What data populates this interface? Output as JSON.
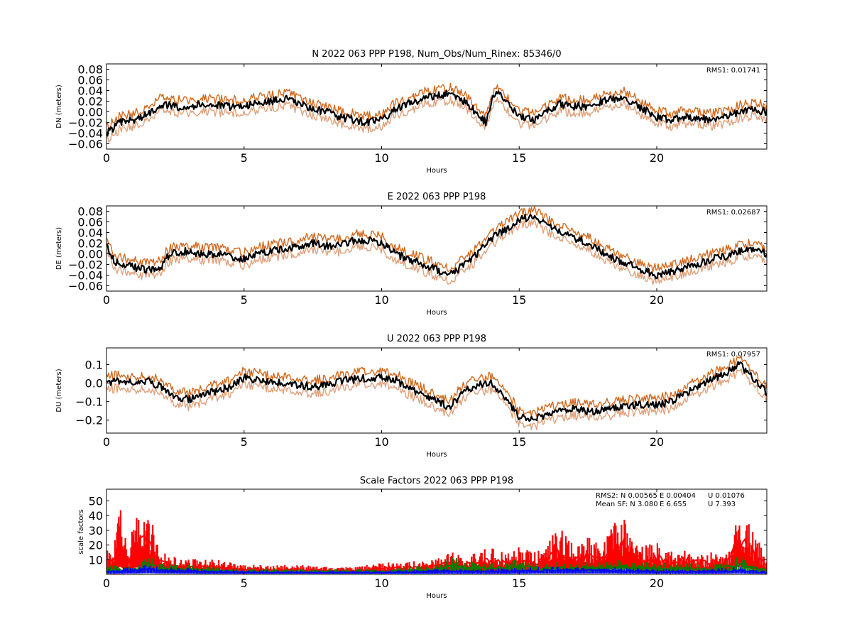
{
  "chart_data": [
    {
      "type": "line",
      "title": "N 2022 063 PPP  P198, Num_Obs/Num_Rinex: 85346/0",
      "xlabel": "Hours",
      "ylabel": "DN (meters)",
      "xlim": [
        0,
        24
      ],
      "ylim": [
        -0.07,
        0.09
      ],
      "xticks": [
        "0",
        "5",
        "10",
        "15",
        "20"
      ],
      "yticks": [
        "0.08",
        "0.06",
        "0.04",
        "0.02",
        "0.00",
        "−0.02",
        "−0.04",
        "−0.06"
      ],
      "annotation": "RMS1:  0.01741",
      "series": [
        {
          "role": "upper",
          "color": "#d2691e"
        },
        {
          "role": "lower",
          "color": "#e0a07a"
        },
        {
          "role": "center",
          "color": "#000000",
          "x": [
            0,
            0.5,
            1,
            1.5,
            2,
            2.5,
            3,
            3.5,
            4,
            4.5,
            5,
            5.5,
            6,
            6.5,
            7,
            7.5,
            8,
            8.5,
            9,
            9.5,
            10,
            10.5,
            11,
            11.5,
            12,
            12.5,
            13,
            13.5,
            13.8,
            14,
            14.2,
            14.5,
            15,
            15.5,
            16,
            16.5,
            17,
            17.5,
            18,
            18.5,
            18.8,
            19,
            19.5,
            20,
            20.5,
            21,
            21.5,
            22,
            22.5,
            23,
            23.5,
            24
          ],
          "y": [
            -0.04,
            -0.02,
            -0.015,
            -0.005,
            0.015,
            0.01,
            0.01,
            0.015,
            0.012,
            0.01,
            0.012,
            0.015,
            0.02,
            0.025,
            0.015,
            0.005,
            0.0,
            -0.01,
            -0.015,
            -0.02,
            -0.015,
            0.005,
            0.015,
            0.025,
            0.03,
            0.035,
            0.02,
            -0.005,
            -0.02,
            0.02,
            0.04,
            0.02,
            -0.01,
            -0.015,
            0.0,
            0.015,
            0.01,
            0.01,
            0.02,
            0.025,
            0.03,
            0.02,
            0.005,
            -0.01,
            -0.015,
            -0.01,
            -0.01,
            -0.015,
            -0.01,
            0.0,
            0.005,
            0.0
          ]
        }
      ]
    },
    {
      "type": "line",
      "title": "E 2022 063 PPP  P198",
      "xlabel": "Hours",
      "ylabel": "DE (meters)",
      "xlim": [
        0,
        24
      ],
      "ylim": [
        -0.07,
        0.09
      ],
      "xticks": [
        "0",
        "5",
        "10",
        "15",
        "20"
      ],
      "yticks": [
        "0.08",
        "0.06",
        "0.04",
        "0.02",
        "0.00",
        "−0.02",
        "−0.04",
        "−0.06"
      ],
      "annotation": "RMS1:  0.02687",
      "series": [
        {
          "role": "upper",
          "color": "#d2691e"
        },
        {
          "role": "lower",
          "color": "#e0a07a"
        },
        {
          "role": "center",
          "color": "#000000",
          "x": [
            0,
            0.3,
            0.6,
            1,
            1.5,
            2,
            2.2,
            2.5,
            3,
            3.5,
            4,
            4.5,
            5,
            5.5,
            6,
            6.5,
            7,
            7.5,
            8,
            8.5,
            9,
            9.5,
            10,
            10.5,
            11,
            11.5,
            12,
            12.5,
            13,
            13.5,
            14,
            14.5,
            15,
            15.5,
            16,
            16.5,
            17,
            17.5,
            18,
            18.5,
            19,
            19.5,
            20,
            20.5,
            21,
            21.5,
            22,
            22.5,
            23,
            23.5,
            24
          ],
          "y": [
            0.015,
            -0.015,
            -0.02,
            -0.025,
            -0.03,
            -0.025,
            -0.005,
            0.002,
            0.005,
            0.0,
            0.0,
            -0.005,
            -0.01,
            0.0,
            0.005,
            0.01,
            0.015,
            0.02,
            0.015,
            0.015,
            0.025,
            0.025,
            0.02,
            0.0,
            -0.01,
            -0.02,
            -0.03,
            -0.04,
            -0.02,
            0.0,
            0.03,
            0.045,
            0.065,
            0.07,
            0.055,
            0.04,
            0.03,
            0.02,
            0.005,
            -0.01,
            -0.02,
            -0.03,
            -0.04,
            -0.035,
            -0.025,
            -0.02,
            -0.01,
            -0.005,
            0.005,
            0.01,
            0.0
          ]
        }
      ]
    },
    {
      "type": "line",
      "title": "U 2022 063 PPP  P198",
      "xlabel": "Hours",
      "ylabel": "DU (meters)",
      "xlim": [
        0,
        24
      ],
      "ylim": [
        -0.27,
        0.19
      ],
      "xticks": [
        "0",
        "5",
        "10",
        "15",
        "20"
      ],
      "yticks": [
        "0.1",
        "0.0",
        "−0.1",
        "−0.2"
      ],
      "annotation": "RMS1:  0.07957",
      "series": [
        {
          "role": "upper",
          "color": "#d2691e"
        },
        {
          "role": "lower",
          "color": "#e0a07a"
        },
        {
          "role": "center",
          "color": "#000000",
          "x": [
            0,
            0.5,
            1,
            1.5,
            2,
            2.5,
            3,
            3.5,
            4,
            4.5,
            5,
            5.5,
            6,
            6.5,
            7,
            7.5,
            8,
            8.5,
            9,
            9.5,
            10,
            10.5,
            11,
            11.5,
            12,
            12.5,
            13,
            13.5,
            14,
            14.5,
            15,
            15.5,
            16,
            16.5,
            17,
            17.5,
            18,
            18.5,
            19,
            19.5,
            20,
            20.5,
            21,
            21.5,
            22,
            22.5,
            23,
            23.5,
            24
          ],
          "y": [
            0.0,
            0.01,
            0.0,
            0.01,
            -0.02,
            -0.07,
            -0.09,
            -0.07,
            -0.04,
            -0.02,
            0.03,
            0.02,
            0.0,
            0.0,
            -0.01,
            -0.02,
            -0.01,
            0.01,
            0.02,
            0.03,
            0.03,
            0.02,
            -0.03,
            -0.06,
            -0.1,
            -0.13,
            -0.04,
            -0.01,
            0.0,
            -0.08,
            -0.18,
            -0.2,
            -0.17,
            -0.15,
            -0.14,
            -0.15,
            -0.15,
            -0.13,
            -0.12,
            -0.12,
            -0.12,
            -0.1,
            -0.06,
            -0.02,
            0.02,
            0.05,
            0.1,
            0.03,
            -0.05
          ]
        }
      ]
    },
    {
      "type": "line",
      "title": "Scale Factors 2022 063 PPP  P198",
      "xlabel": "Hours",
      "ylabel": "scale factors",
      "xlim": [
        0,
        24
      ],
      "ylim": [
        0,
        58
      ],
      "xticks": [
        "0",
        "5",
        "10",
        "15",
        "20"
      ],
      "yticks": [
        "50",
        "40",
        "30",
        "20",
        "10"
      ],
      "legend": [
        {
          "text": "RMS2: N  0.00565",
          "color": "#0000ff"
        },
        {
          "text": "E  0.00404",
          "color": "#008000"
        },
        {
          "text": "U  0.01076",
          "color": "#ff0000"
        },
        {
          "text": "Mean SF: N   3.080",
          "color": "#0000ff"
        },
        {
          "text": "E   6.655",
          "color": "#008000"
        },
        {
          "text": "U   7.393",
          "color": "#ff0000"
        }
      ],
      "series": [
        {
          "name": "U",
          "color": "#ff0000",
          "x": [
            0,
            0.2,
            0.5,
            0.8,
            1,
            1.5,
            2,
            2.5,
            3,
            4,
            5,
            6,
            7,
            8,
            9,
            10,
            11,
            12,
            12.5,
            13,
            13.5,
            14,
            14.5,
            15,
            15.5,
            16,
            16.3,
            17,
            17.5,
            18,
            18.5,
            18.8,
            19,
            19.5,
            20,
            20.5,
            21,
            21.5,
            22,
            22.5,
            23,
            23.3,
            24
          ],
          "y": [
            15,
            12,
            35,
            10,
            30,
            35,
            12,
            9,
            8,
            8,
            5,
            5,
            5,
            4,
            4,
            6,
            7,
            8,
            12,
            10,
            12,
            15,
            12,
            15,
            12,
            15,
            28,
            15,
            20,
            15,
            28,
            30,
            20,
            15,
            18,
            12,
            15,
            12,
            12,
            10,
            35,
            30,
            8
          ]
        },
        {
          "name": "E",
          "color": "#008000",
          "x": [
            0,
            1,
            1.5,
            2,
            3,
            4,
            5,
            10,
            12,
            12.5,
            13,
            14,
            15,
            16,
            17,
            18,
            19,
            20,
            21,
            22,
            23,
            24
          ],
          "y": [
            5,
            5,
            10,
            6,
            5,
            4,
            3,
            3,
            5,
            10,
            7,
            6,
            8,
            6,
            7,
            7,
            8,
            6,
            6,
            5,
            10,
            4
          ]
        },
        {
          "name": "N",
          "color": "#0000ff",
          "x": [
            0,
            1,
            1.5,
            2,
            4,
            6,
            8,
            10,
            12,
            14,
            16,
            18,
            20,
            22,
            23,
            24
          ],
          "y": [
            3,
            4,
            5,
            4,
            3,
            2,
            2,
            2,
            3,
            3,
            4,
            4,
            3,
            3,
            4,
            2
          ]
        }
      ]
    }
  ]
}
